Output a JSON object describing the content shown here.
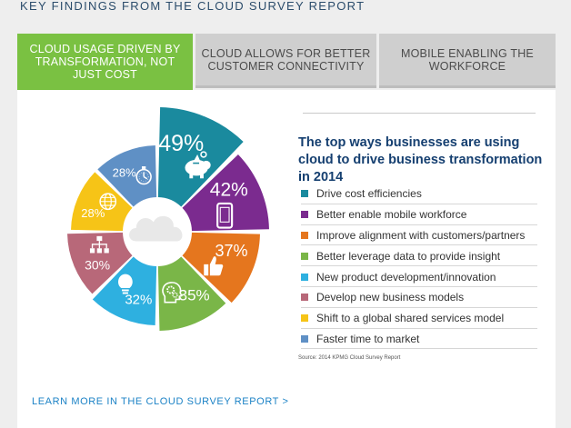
{
  "page": {
    "heading": "KEY FINDINGS FROM THE CLOUD SURVEY REPORT"
  },
  "tabs": [
    {
      "label": "CLOUD USAGE DRIVEN BY TRANSFORMATION, NOT JUST COST",
      "active": true
    },
    {
      "label": "CLOUD ALLOWS FOR BETTER CUSTOMER CONNECTIVITY",
      "active": false
    },
    {
      "label": "MOBILE ENABLING THE WORKFORCE",
      "active": false
    }
  ],
  "learn_more": "LEARN MORE IN THE CLOUD SURVEY REPORT >",
  "chart_data": {
    "type": "pie",
    "style": "exploded donut",
    "title": "The top ways businesses are using cloud to drive business transformation in 2014",
    "source": "Source: 2014 KPMG Cloud Survey Report",
    "legend_placement": "right",
    "center_icon": "cloud-icon",
    "slices": [
      {
        "label": "Drive cost efficiencies",
        "value": 49,
        "display": "49%",
        "color": "#1a8a9e",
        "icon": "piggy-bank-icon"
      },
      {
        "label": "Better enable mobile workforce",
        "value": 42,
        "display": "42%",
        "color": "#7b2b8f",
        "icon": "mobile-phone-icon"
      },
      {
        "label": "Improve alignment with customers/partners",
        "value": 37,
        "display": "37%",
        "color": "#e5761e",
        "icon": "thumbs-up-icon"
      },
      {
        "label": "Better leverage data to provide insight",
        "value": 35,
        "display": "35%",
        "color": "#7ab648",
        "icon": "gears-head-icon"
      },
      {
        "label": "New product development/innovation",
        "value": 32,
        "display": "32%",
        "color": "#2eb0e0",
        "icon": "lightbulb-icon"
      },
      {
        "label": "Develop new business models",
        "value": 30,
        "display": "30%",
        "color": "#b86879",
        "icon": "org-chart-icon"
      },
      {
        "label": "Shift to a global shared services model",
        "value": 28,
        "display": "28%",
        "color": "#f6c417",
        "icon": "globe-icon"
      },
      {
        "label": "Faster time to market",
        "value": 28,
        "display": "28%",
        "color": "#5f90c5",
        "icon": "stopwatch-icon"
      }
    ]
  }
}
